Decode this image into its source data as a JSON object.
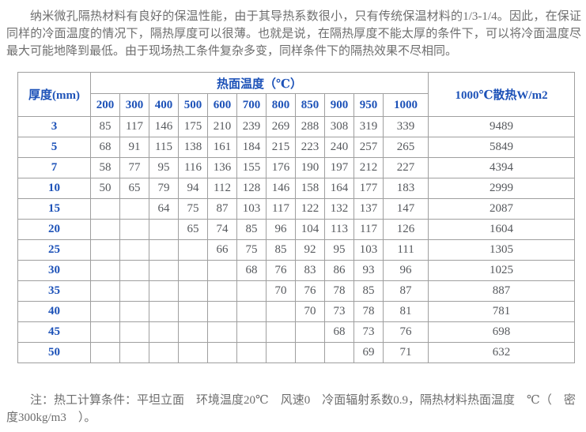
{
  "intro": {
    "text": "纳米微孔隔热材料有良好的保温性能，由于其导热系数很小，只有传统保温材料的1/3-1/4。因此，在保证同样的冷面温度的情况下，隔热厚度可以很薄。也就是说，在隔热厚度不能太厚的条件下，可以将冷面温度尽最大可能地降到最低。由于现场热工条件复杂多变，同样条件下的隔热效果不尽相同。"
  },
  "table": {
    "thickness_header": "厚度(mm)",
    "hot_face_header": "热面温度（℃）",
    "heat_loss_header": "1000℃散热W/m2",
    "temperatures": [
      "200",
      "300",
      "400",
      "500",
      "600",
      "700",
      "800",
      "850",
      "900",
      "950",
      "1000"
    ],
    "rows": [
      {
        "thickness": "3",
        "values": [
          "85",
          "117",
          "146",
          "175",
          "210",
          "239",
          "269",
          "288",
          "308",
          "319",
          "339"
        ],
        "heat_loss": "9489"
      },
      {
        "thickness": "5",
        "values": [
          "68",
          "91",
          "115",
          "138",
          "161",
          "184",
          "215",
          "223",
          "240",
          "257",
          "265"
        ],
        "heat_loss": "5849"
      },
      {
        "thickness": "7",
        "values": [
          "58",
          "77",
          "95",
          "116",
          "136",
          "155",
          "176",
          "190",
          "197",
          "212",
          "227"
        ],
        "heat_loss": "4394"
      },
      {
        "thickness": "10",
        "values": [
          "50",
          "65",
          "79",
          "94",
          "112",
          "128",
          "146",
          "158",
          "164",
          "177",
          "183"
        ],
        "heat_loss": "2999"
      },
      {
        "thickness": "15",
        "values": [
          "",
          "",
          "64",
          "75",
          "87",
          "103",
          "117",
          "122",
          "132",
          "137",
          "147"
        ],
        "heat_loss": "2087"
      },
      {
        "thickness": "20",
        "values": [
          "",
          "",
          "",
          "65",
          "74",
          "85",
          "96",
          "104",
          "113",
          "117",
          "126"
        ],
        "heat_loss": "1604"
      },
      {
        "thickness": "25",
        "values": [
          "",
          "",
          "",
          "",
          "66",
          "75",
          "85",
          "92",
          "95",
          "103",
          "111"
        ],
        "heat_loss": "1305"
      },
      {
        "thickness": "30",
        "values": [
          "",
          "",
          "",
          "",
          "",
          "68",
          "76",
          "83",
          "86",
          "93",
          "96"
        ],
        "heat_loss": "1025"
      },
      {
        "thickness": "35",
        "values": [
          "",
          "",
          "",
          "",
          "",
          "",
          "70",
          "76",
          "78",
          "85",
          "87"
        ],
        "heat_loss": "887"
      },
      {
        "thickness": "40",
        "values": [
          "",
          "",
          "",
          "",
          "",
          "",
          "",
          "70",
          "73",
          "78",
          "81"
        ],
        "heat_loss": "781"
      },
      {
        "thickness": "45",
        "values": [
          "",
          "",
          "",
          "",
          "",
          "",
          "",
          "",
          "68",
          "73",
          "76"
        ],
        "heat_loss": "698"
      },
      {
        "thickness": "50",
        "values": [
          "",
          "",
          "",
          "",
          "",
          "",
          "",
          "",
          "",
          "69",
          "71"
        ],
        "heat_loss": "632"
      }
    ]
  },
  "note": {
    "text": "注：热工计算条件：平坦立面　环境温度20℃　风速0　冷面辐射系数0.9，隔热材料热面温度　℃（　密度300kg/m3　）。"
  },
  "colors": {
    "header_blue": "#1d52b8",
    "data_text": "#56595d",
    "paragraph_text": "#6e6e6e",
    "border": "#9f9f9f"
  }
}
